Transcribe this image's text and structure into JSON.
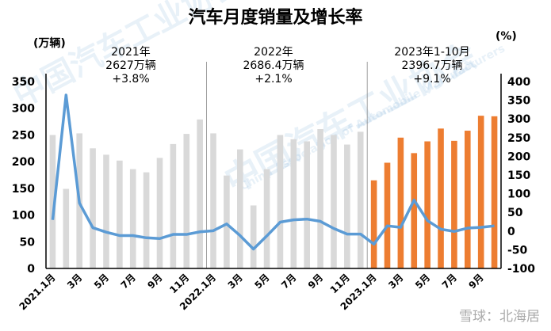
{
  "chart_data": {
    "type": "bar+line",
    "title": "汽车月度销量及增长率",
    "left_axis": {
      "label": "(万辆)",
      "range": [
        0,
        350
      ],
      "ticks": [
        0,
        50,
        100,
        150,
        200,
        250,
        300,
        350
      ]
    },
    "right_axis": {
      "label": "(%)",
      "range": [
        -100,
        400
      ],
      "ticks": [
        -100,
        -50,
        0,
        50,
        100,
        150,
        200,
        250,
        300,
        350,
        400
      ]
    },
    "x_tick_labels": [
      "2021.1月",
      "3月",
      "5月",
      "7月",
      "9月",
      "11月",
      "2022.1月",
      "3月",
      "5月",
      "7月",
      "9月",
      "11月",
      "2023.1月",
      "3月",
      "5月",
      "7月",
      "9月"
    ],
    "categories": [
      "2021.1",
      "2021.2",
      "2021.3",
      "2021.4",
      "2021.5",
      "2021.6",
      "2021.7",
      "2021.8",
      "2021.9",
      "2021.10",
      "2021.11",
      "2021.12",
      "2022.1",
      "2022.2",
      "2022.3",
      "2022.4",
      "2022.5",
      "2022.6",
      "2022.7",
      "2022.8",
      "2022.9",
      "2022.10",
      "2022.11",
      "2022.12",
      "2023.1",
      "2023.2",
      "2023.3",
      "2023.4",
      "2023.5",
      "2023.6",
      "2023.7",
      "2023.8",
      "2023.9",
      "2023.10"
    ],
    "series": [
      {
        "type": "bar",
        "axis": "left",
        "values": [
          250,
          149,
          253,
          225,
          213,
          202,
          186,
          180,
          207,
          233,
          252,
          279,
          253,
          174,
          223,
          118,
          186,
          250,
          242,
          238,
          261,
          250,
          232,
          256,
          165,
          198,
          245,
          216,
          238,
          262,
          239,
          258,
          286,
          285
        ]
      },
      {
        "type": "line",
        "axis": "right",
        "values": [
          30,
          364,
          75,
          9,
          -3,
          -12,
          -12,
          -18,
          -20,
          -9,
          -9,
          -2,
          1,
          19,
          -12,
          -48,
          -13,
          24,
          30,
          32,
          26,
          7,
          -8,
          -8,
          -35,
          14,
          10,
          83,
          28,
          5,
          -1,
          8,
          10,
          14
        ]
      }
    ],
    "colors": {
      "bar_past": "#d9d9d9",
      "bar_2023": "#ed7d31",
      "line": "#5b9bd5"
    },
    "annotations": [
      {
        "text": "2021年\n2627万辆\n+3.8%"
      },
      {
        "text": "2022年\n2686.4万辆\n+2.1%"
      },
      {
        "text": "2023年1-10月\n2396.7万辆\n+9.1%"
      }
    ]
  },
  "watermarks": {
    "cn": "中国汽车工业协会",
    "en": "China Association of Automobile Manufacturers",
    "credit": "雪球：北海居"
  }
}
